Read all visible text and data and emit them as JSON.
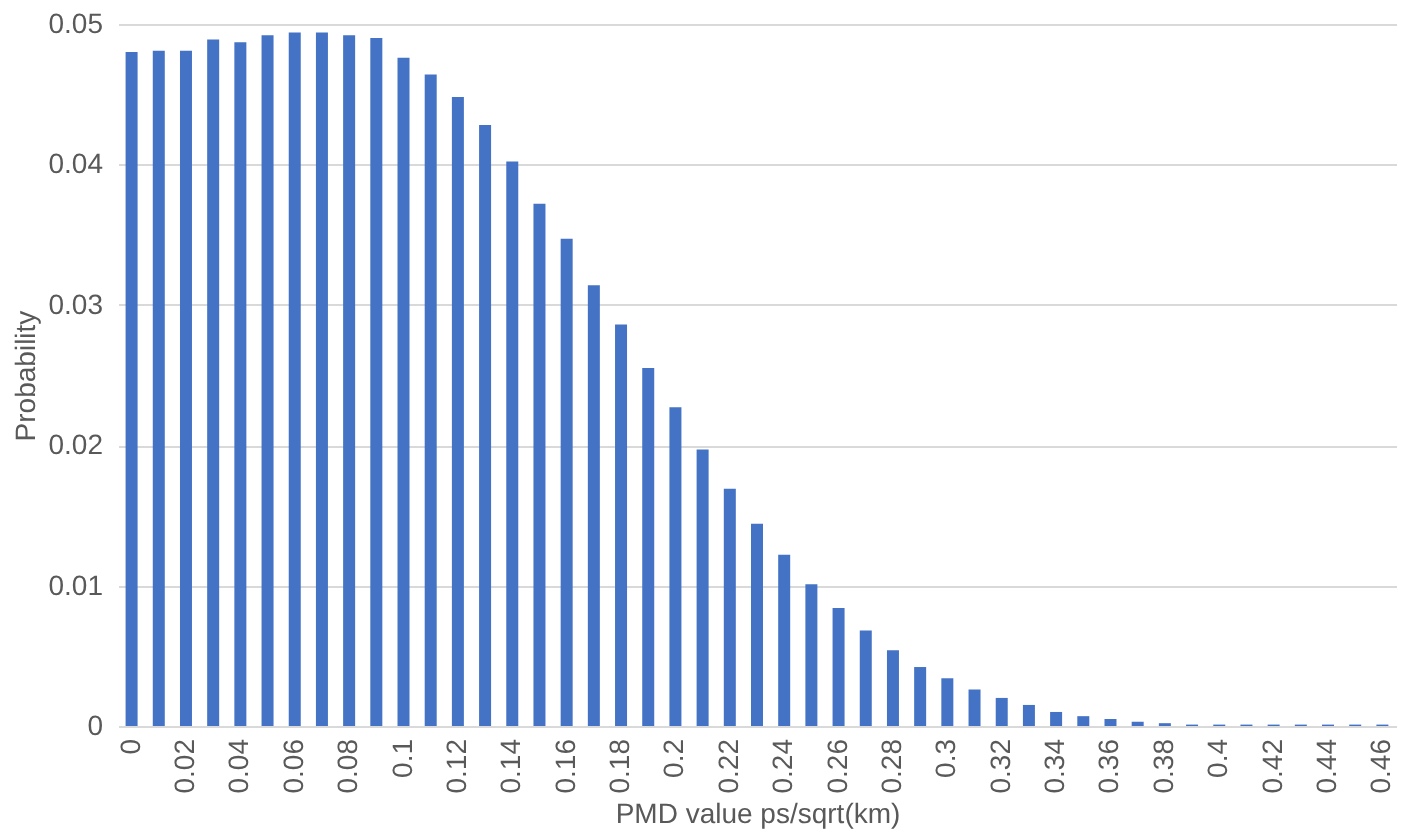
{
  "chart_data": {
    "type": "bar",
    "xlabel": "PMD value ps/sqrt(km)",
    "ylabel": "Probability",
    "categories": [
      "0",
      null,
      "0.02",
      null,
      "0.04",
      null,
      "0.06",
      null,
      "0.08",
      null,
      "0.1",
      null,
      "0.12",
      null,
      "0.14",
      null,
      "0.16",
      null,
      "0.18",
      null,
      "0.2",
      null,
      "0.22",
      null,
      "0.24",
      null,
      "0.26",
      null,
      "0.28",
      null,
      "0.3",
      null,
      "0.32",
      null,
      "0.34",
      null,
      "0.36",
      null,
      "0.38",
      null,
      "0.4",
      null,
      "0.42",
      null,
      "0.44",
      null,
      "0.46"
    ],
    "values": [
      0.048,
      0.0481,
      0.0481,
      0.0489,
      0.0487,
      0.0492,
      0.0494,
      0.0494,
      0.0492,
      0.049,
      0.0476,
      0.0464,
      0.0448,
      0.0428,
      0.0402,
      0.0372,
      0.0347,
      0.0314,
      0.0286,
      0.0255,
      0.0227,
      0.0197,
      0.0169,
      0.0144,
      0.0122,
      0.0101,
      0.0084,
      0.0068,
      0.0054,
      0.0042,
      0.0034,
      0.0026,
      0.002,
      0.0015,
      0.001,
      0.0007,
      0.0005,
      0.0003,
      0.0002,
      0.0001,
      0.0001,
      0.0001,
      0.0001,
      0.0001,
      0.0001,
      0.0001,
      0.0001
    ],
    "color": "#4472c4",
    "ylim": [
      0,
      0.05
    ],
    "yticks": [
      0,
      0.01,
      0.02,
      0.03,
      0.04,
      0.05
    ],
    "grid": "y"
  }
}
